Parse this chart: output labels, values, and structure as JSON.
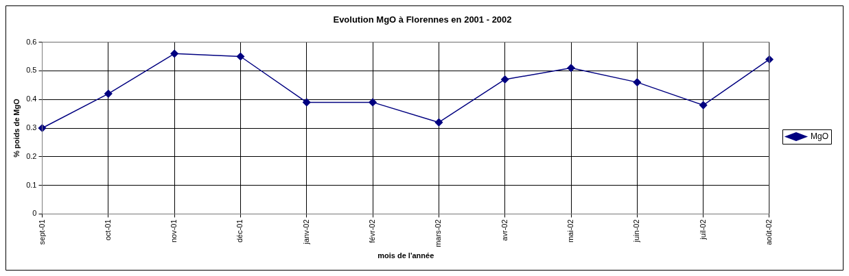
{
  "chart_data": {
    "type": "line",
    "title": "Evolution MgO à Florennes en 2001 - 2002",
    "xlabel": "mois de l'année",
    "ylabel": "% poids de MgO",
    "categories": [
      "sept-01",
      "oct-01",
      "nov-01",
      "déc-01",
      "janv-02",
      "févr-02",
      "mars-02",
      "avr-02",
      "mai-02",
      "juin-02",
      "juil-02",
      "août-02"
    ],
    "series": [
      {
        "name": "MgO",
        "color": "#000080",
        "values": [
          0.3,
          0.42,
          0.56,
          0.55,
          0.39,
          0.39,
          0.32,
          0.47,
          0.51,
          0.46,
          0.38,
          0.54
        ]
      }
    ],
    "ylim": [
      0,
      0.6
    ],
    "yticks": [
      0,
      0.1,
      0.2,
      0.3,
      0.4,
      0.5,
      0.6
    ],
    "grid": true,
    "legend": "right",
    "marker": "diamond",
    "line_style": "solid"
  }
}
